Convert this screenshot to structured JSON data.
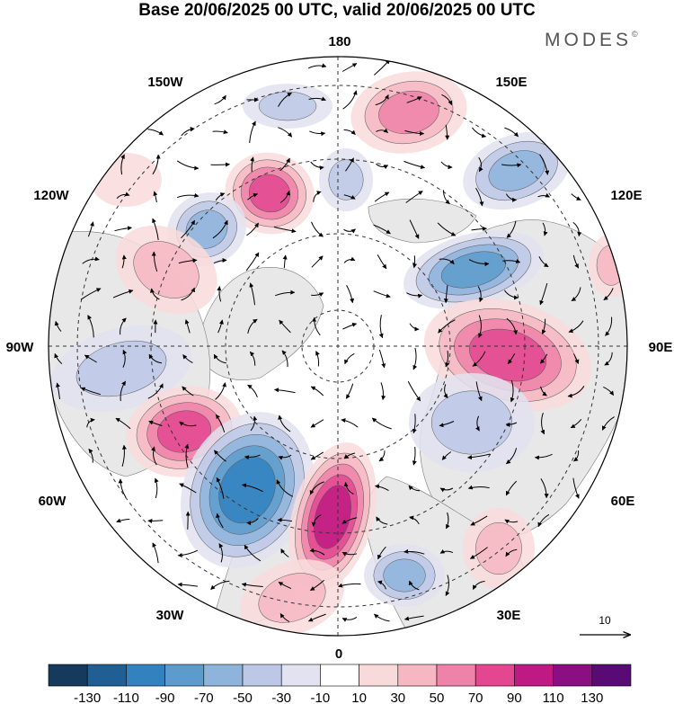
{
  "title": "Base 20/06/2025 00 UTC, valid 20/06/2025 00 UTC",
  "brand": {
    "name": "MODES",
    "mark": "©"
  },
  "longitude_labels": {
    "top": "180",
    "bottom": "0",
    "left": "90W",
    "right": "90E",
    "upper_left_1": "150W",
    "upper_left_2": "120W",
    "upper_right_1": "150E",
    "upper_right_2": "120E",
    "lower_left_1": "60W",
    "lower_left_2": "30W",
    "lower_right_1": "60E",
    "lower_right_2": "30E"
  },
  "reference_vector": {
    "label": "10"
  },
  "colorbar": {
    "labels": [
      "-130",
      "-110",
      "-90",
      "-70",
      "-50",
      "-30",
      "-10",
      "10",
      "30",
      "50",
      "70",
      "90",
      "110",
      "130"
    ],
    "colors": [
      "#163a5c",
      "#1f5f93",
      "#3182bf",
      "#5d9bcd",
      "#8fb4dc",
      "#bcc8e6",
      "#e2e2f0",
      "#ffffff",
      "#f9dada",
      "#f6b7c3",
      "#ef82a8",
      "#e2478f",
      "#bf1a83",
      "#8c0e83",
      "#5a0a74"
    ]
  }
}
